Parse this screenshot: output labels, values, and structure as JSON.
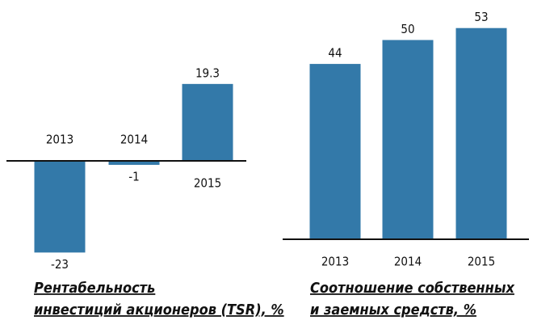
{
  "chart_data": [
    {
      "type": "bar",
      "title": [
        "Рентабельность",
        "инвестиций акционеров (TSR), %"
      ],
      "categories": [
        "2013",
        "2014",
        "2015"
      ],
      "values": [
        -23,
        -1,
        19.3
      ],
      "color": "#3379a9"
    },
    {
      "type": "bar",
      "title": [
        "Соотношение собственных",
        "и заемных средств, %"
      ],
      "categories": [
        "2013",
        "2014",
        "2015"
      ],
      "values": [
        44,
        50,
        53
      ],
      "color": "#3379a9"
    }
  ]
}
